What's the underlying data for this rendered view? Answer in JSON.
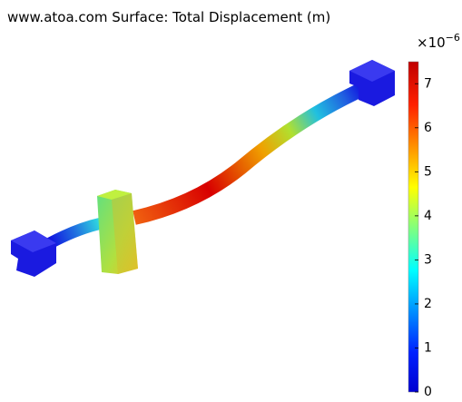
{
  "chart_data": {
    "type": "surface",
    "title": "www.atoa.com  Surface: Total Displacement (m)",
    "colorbar": {
      "lim": [
        0,
        7.5
      ],
      "ticks": [
        0,
        1,
        2,
        3,
        4,
        5,
        6,
        7
      ],
      "scale_base": "×10",
      "scale_exponent": "−6"
    }
  }
}
